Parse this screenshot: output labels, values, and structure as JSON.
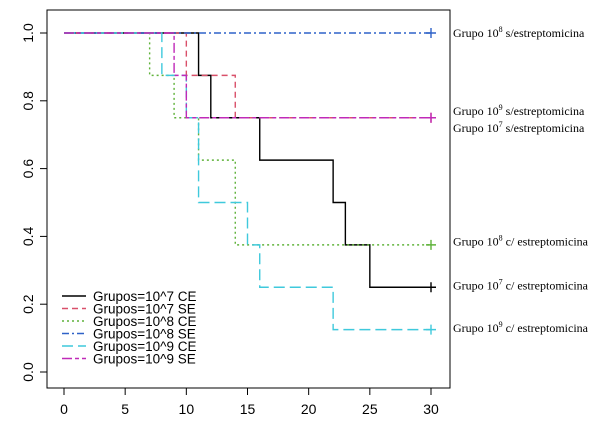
{
  "chart_data": {
    "type": "line",
    "step": true,
    "xlim": [
      0,
      30
    ],
    "ylim": [
      0,
      1
    ],
    "x_ticks": [
      0,
      5,
      10,
      15,
      20,
      25,
      30
    ],
    "y_ticks": [
      0.0,
      0.2,
      0.4,
      0.6,
      0.8,
      1.0
    ],
    "x_tick_labels": [
      "0",
      "5",
      "10",
      "15",
      "20",
      "25",
      "30"
    ],
    "y_tick_labels": [
      "0.0",
      "0.2",
      "0.4",
      "0.6",
      "0.8",
      "1.0"
    ],
    "legend_position": "bottom-left",
    "series": [
      {
        "name": "Grupos=10^7 CE",
        "color": "#000000",
        "dash": "solid",
        "x": [
          0,
          11,
          12,
          16,
          22,
          23,
          25,
          30
        ],
        "y": [
          1.0,
          0.875,
          0.75,
          0.625,
          0.5,
          0.375,
          0.25,
          0.25
        ]
      },
      {
        "name": "Grupos=10^7 SE",
        "color": "#d9506a",
        "dash": "dashed",
        "x": [
          0,
          10,
          14,
          30
        ],
        "y": [
          1.0,
          0.875,
          0.75,
          0.75
        ]
      },
      {
        "name": "Grupos=10^8 CE",
        "color": "#5fb23a",
        "dash": "dotted",
        "x": [
          0,
          7,
          9,
          11,
          14,
          30
        ],
        "y": [
          1.0,
          0.875,
          0.75,
          0.625,
          0.375,
          0.375
        ]
      },
      {
        "name": "Grupos=10^8 SE",
        "color": "#2f62c8",
        "dash": "dashdot",
        "x": [
          0,
          30
        ],
        "y": [
          1.0,
          1.0
        ]
      },
      {
        "name": "Grupos=10^9 CE",
        "color": "#3fc9dc",
        "dash": "longdash",
        "x": [
          0,
          8,
          10,
          11,
          15,
          16,
          22,
          30
        ],
        "y": [
          1.0,
          0.875,
          0.75,
          0.5,
          0.375,
          0.25,
          0.125,
          0.125
        ]
      },
      {
        "name": "Grupos=10^9 SE",
        "color": "#c02ab8",
        "dash": "twodash",
        "x": [
          0,
          9,
          10,
          30
        ],
        "y": [
          1.0,
          0.875,
          0.75,
          0.75
        ]
      }
    ],
    "annotations": [
      {
        "base": "Grupo 10",
        "sup": "8",
        "rest": " s/estreptomicina",
        "y": 1.0
      },
      {
        "base": "Grupo 10",
        "sup": "9",
        "rest": " s/estreptomicina",
        "y": 0.77
      },
      {
        "base": "Grupo 10",
        "sup": "7",
        "rest": " s/estreptomicina",
        "y": 0.72
      },
      {
        "base": "Grupo 10",
        "sup": "8",
        "rest": " c/ estreptomicina",
        "y": 0.385
      },
      {
        "base": "Grupo 10",
        "sup": "7",
        "rest": " c/ estreptomicina",
        "y": 0.255
      },
      {
        "base": "Grupo 10",
        "sup": "9",
        "rest": " c/ estreptomicina",
        "y": 0.13
      }
    ]
  }
}
